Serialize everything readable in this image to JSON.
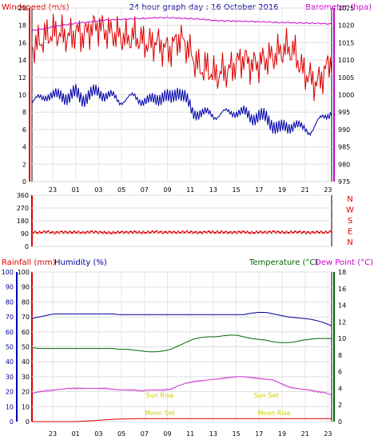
{
  "chart_data": [
    {
      "type": "line",
      "title": "24 hour graph day : 16 October 2016",
      "ylabel_left": "Windspeed (m/s)",
      "ylabel_right": "Barometer (hpa)",
      "ylim_left": [
        0,
        20
      ],
      "ylim_right": [
        975,
        1025
      ],
      "left_ticks": [
        "0",
        "2",
        "4",
        "6",
        "8",
        "10",
        "12",
        "14",
        "16",
        "18",
        "20"
      ],
      "right_ticks": [
        "975",
        "980",
        "985",
        "990",
        "995",
        "1000",
        "1005",
        "1010",
        "1015",
        "1020",
        "1025"
      ],
      "x_ticks": [
        "23",
        "01",
        "03",
        "05",
        "07",
        "09",
        "11",
        "13",
        "15",
        "17",
        "19",
        "21",
        "23"
      ],
      "series": [
        {
          "key": "gust",
          "color": "#dd0000",
          "values": [
            15.5,
            16,
            16.8,
            17.2,
            17,
            16.6,
            17.2,
            16.8,
            17.6,
            18,
            17.4,
            17.1,
            16.8,
            16.4,
            16.8,
            16.2,
            15.8,
            16.1,
            15.4,
            15.2,
            16.6,
            15.9,
            14.3,
            13,
            13.1,
            12.2,
            12.6,
            12.8,
            13.7,
            14.2,
            13.4,
            13.6,
            14.1,
            14.4,
            15,
            15.4,
            14.8,
            12.8,
            12,
            11.2,
            12.6,
            14.2
          ]
        },
        {
          "key": "avg",
          "color": "#0000aa",
          "values": [
            9,
            9.6,
            10,
            9.8,
            10,
            9.7,
            10.2,
            9.6,
            10,
            10.4,
            10,
            9.8,
            9.3,
            9.5,
            9.8,
            9.4,
            9.2,
            9.6,
            9.9,
            9.4,
            10.6,
            9.6,
            7.9,
            8,
            7.8,
            7.6,
            7.9,
            7.9,
            8.1,
            7.9,
            7.4,
            7.6,
            7.3,
            6.6,
            6.1,
            6.2,
            6.8,
            6,
            5.8,
            6.8,
            7.4,
            8.2
          ]
        },
        {
          "key": "baro",
          "color": "#cc00cc",
          "axis": "right",
          "values": [
            1018.5,
            1018.8,
            1019.2,
            1019.6,
            1020,
            1020.3,
            1020.6,
            1020.8,
            1021,
            1021.3,
            1021.5,
            1021.6,
            1021.7,
            1021.8,
            1021.9,
            1022,
            1022.1,
            1022.2,
            1022.2,
            1022.2,
            1022.1,
            1022,
            1021.9,
            1021.8,
            1021.6,
            1021.4,
            1021.3,
            1021.3,
            1021.2,
            1021.2,
            1021.1,
            1021,
            1021,
            1020.9,
            1020.8,
            1020.8,
            1020.7,
            1020.7,
            1020.6,
            1020.6,
            1020.5,
            1020.4
          ]
        }
      ]
    },
    {
      "type": "scatter",
      "ylabel_right_letters": [
        "N",
        "W",
        "S",
        "E",
        "N"
      ],
      "ylim": [
        0,
        360
      ],
      "left_ticks": [
        "0",
        "90",
        "180",
        "270",
        "360"
      ],
      "series": [
        {
          "key": "direction",
          "color": "#dd0000",
          "values": [
            100,
            98,
            104,
            96,
            102,
            99,
            101,
            97,
            103,
            100,
            98,
            95,
            101,
            99,
            102,
            97,
            100,
            104,
            98,
            101,
            99,
            102,
            100,
            97,
            103,
            99,
            101,
            98,
            100,
            102,
            96,
            101,
            99,
            103,
            100,
            98,
            102,
            100,
            97,
            101,
            99,
            103
          ]
        }
      ]
    },
    {
      "type": "line",
      "ylabel_left": "Rainfall (mm)",
      "ylabel_left2": "Humidity (%)",
      "ylabel_right": "Temperature (°C)",
      "ylabel_right2": "Dew Point (°C)",
      "ylim_left": [
        0,
        100
      ],
      "ylim_right": [
        0,
        18
      ],
      "left_ticks": [
        "0",
        "10",
        "20",
        "30",
        "40",
        "50",
        "60",
        "70",
        "80",
        "90",
        "100"
      ],
      "right_ticks": [
        "0",
        "2",
        "4",
        "6",
        "8",
        "10",
        "12",
        "14",
        "16",
        "18"
      ],
      "annotations": [
        "Sun Rise",
        "Sun Set",
        "Moon Set",
        "Moon Rise"
      ],
      "series": [
        {
          "key": "humidity",
          "color": "#000099",
          "values": [
            69,
            70,
            71,
            72,
            72,
            72,
            72,
            72,
            72,
            72,
            72,
            72,
            71.5,
            71.5,
            71.5,
            71.5,
            71.5,
            71.5,
            71.5,
            71.5,
            71.5,
            71.5,
            71.5,
            71.5,
            71.5,
            71.5,
            71.5,
            71.5,
            71.5,
            71.5,
            72.5,
            73,
            73,
            72,
            71,
            70,
            69.5,
            69,
            68.5,
            67.5,
            66,
            64
          ]
        },
        {
          "key": "temperature",
          "color": "#006600",
          "axis": "right",
          "values": [
            8.9,
            8.8,
            8.8,
            8.8,
            8.8,
            8.8,
            8.8,
            8.8,
            8.8,
            8.8,
            8.8,
            8.8,
            8.7,
            8.7,
            8.6,
            8.5,
            8.4,
            8.4,
            8.5,
            8.7,
            9.1,
            9.5,
            9.9,
            10.1,
            10.2,
            10.2,
            10.3,
            10.4,
            10.4,
            10.2,
            10,
            9.9,
            9.8,
            9.6,
            9.5,
            9.5,
            9.6,
            9.8,
            9.9,
            10,
            10,
            10
          ]
        },
        {
          "key": "dewpoint",
          "color": "#cc33cc",
          "axis": "right",
          "values": [
            3.4,
            3.6,
            3.7,
            3.8,
            3.9,
            4,
            4,
            4,
            4,
            4,
            4,
            3.9,
            3.8,
            3.8,
            3.8,
            3.7,
            3.8,
            3.8,
            3.8,
            3.9,
            4.3,
            4.6,
            4.8,
            4.9,
            5,
            5.1,
            5.2,
            5.3,
            5.4,
            5.4,
            5.3,
            5.2,
            5.1,
            5,
            4.6,
            4.2,
            4,
            3.9,
            3.8,
            3.6,
            3.5,
            3.2
          ]
        },
        {
          "key": "rainfall",
          "color": "#dd0000",
          "values": [
            0,
            0,
            0,
            0,
            0,
            0,
            0,
            0.3,
            0.5,
            0.8,
            1.2,
            1.5,
            1.7,
            1.8,
            1.9,
            2,
            2,
            2,
            2,
            2,
            2,
            2,
            2,
            2,
            2,
            2,
            2,
            2,
            2,
            2,
            2,
            2,
            2,
            2,
            2,
            2,
            2,
            2,
            2,
            2,
            2,
            2
          ]
        }
      ]
    }
  ]
}
